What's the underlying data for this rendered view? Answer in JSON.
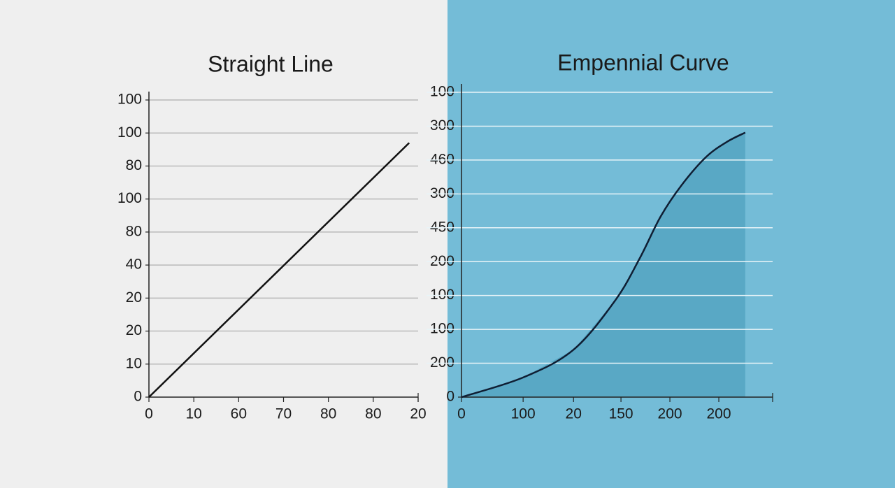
{
  "chart_data": [
    {
      "type": "line",
      "title": "Straight Line",
      "color": "#111111",
      "grid": true,
      "grid_color": "#b9b9b9",
      "x": [
        0,
        5.8
      ],
      "values": [
        0,
        7.7
      ],
      "xlim": [
        0,
        6
      ],
      "ylim": [
        0,
        9
      ],
      "xticks": [
        {
          "value": 0,
          "label": "0"
        },
        {
          "value": 1,
          "label": "10"
        },
        {
          "value": 2,
          "label": "60"
        },
        {
          "value": 3,
          "label": "70"
        },
        {
          "value": 4,
          "label": "80"
        },
        {
          "value": 5,
          "label": "80"
        },
        {
          "value": 6,
          "label": "20"
        }
      ],
      "yticks": [
        {
          "value": 0,
          "label": "0"
        },
        {
          "value": 1,
          "label": "10"
        },
        {
          "value": 2,
          "label": "20"
        },
        {
          "value": 3,
          "label": "20"
        },
        {
          "value": 4,
          "label": "40"
        },
        {
          "value": 5,
          "label": "80"
        },
        {
          "value": 6,
          "label": "100"
        },
        {
          "value": 7,
          "label": "80"
        },
        {
          "value": 8,
          "label": "100"
        },
        {
          "value": 9,
          "label": "100"
        }
      ]
    },
    {
      "type": "area",
      "title": "Empennial Curve",
      "color": "#0f1e33",
      "fill": "#4f9fbd",
      "grid": true,
      "grid_color": "#e8f4f8",
      "x": [
        0,
        1.26,
        2.29,
        3.14,
        3.64,
        4.07,
        4.5,
        5.0,
        5.43,
        5.8
      ],
      "values": [
        0,
        0.58,
        1.4,
        2.85,
        4.09,
        5.33,
        6.26,
        7.09,
        7.54,
        7.81
      ],
      "xlim": [
        0,
        6.36
      ],
      "ylim": [
        0,
        9
      ],
      "xticks": [
        {
          "value": 0,
          "label": "0"
        },
        {
          "value": 1.26,
          "label": "100"
        },
        {
          "value": 2.29,
          "label": "20"
        },
        {
          "value": 3.26,
          "label": "150"
        },
        {
          "value": 4.26,
          "label": "200"
        },
        {
          "value": 5.26,
          "label": "200"
        }
      ],
      "yticks": [
        {
          "value": 0,
          "label": "0"
        },
        {
          "value": 1,
          "label": "200"
        },
        {
          "value": 2,
          "label": "100"
        },
        {
          "value": 3,
          "label": "100"
        },
        {
          "value": 4,
          "label": "200"
        },
        {
          "value": 5,
          "label": "450"
        },
        {
          "value": 6,
          "label": "300"
        },
        {
          "value": 7,
          "label": "460"
        },
        {
          "value": 8,
          "label": "300"
        },
        {
          "value": 9,
          "label": "100"
        }
      ]
    }
  ]
}
